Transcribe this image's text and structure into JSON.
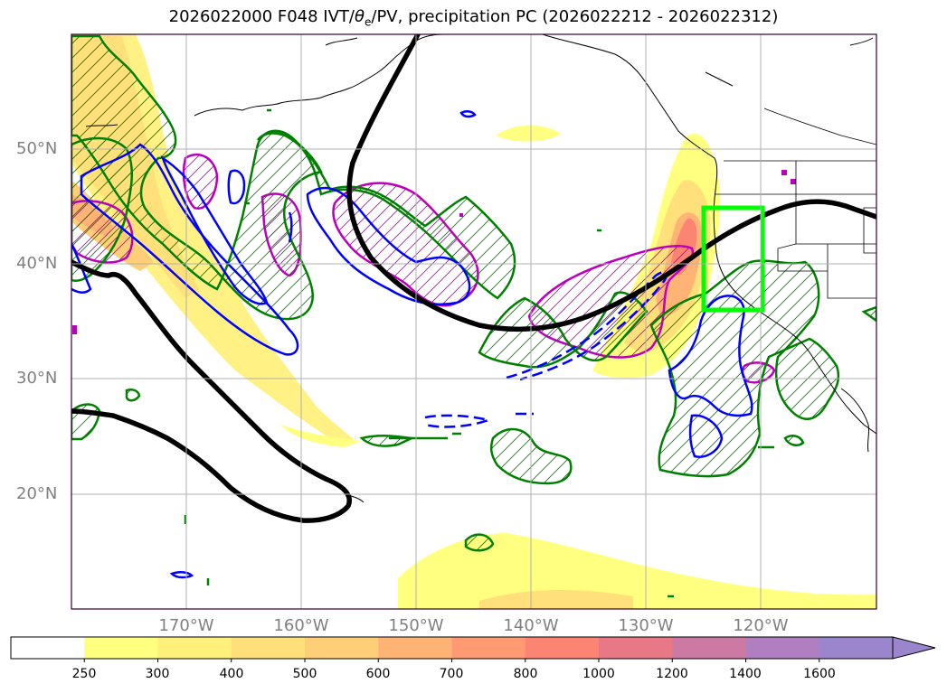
{
  "title_prefix": "2026022000 F048 IVT/",
  "title_theta": "θ",
  "title_theta_sub": "e",
  "title_suffix": "/PV, precipitation PC (2026022212 - 2026022312)",
  "lat_labels": [
    "50°N",
    "40°N",
    "30°N",
    "20°N"
  ],
  "lon_labels": [
    "170°W",
    "160°W",
    "150°W",
    "140°W",
    "130°W",
    "120°W"
  ],
  "colorbar": {
    "ticks": [
      "250",
      "300",
      "400",
      "500",
      "600",
      "700",
      "800",
      "1000",
      "1200",
      "1400",
      "1600"
    ],
    "colors": [
      "#ffffff",
      "#ffff80",
      "#fff07c",
      "#ffe07a",
      "#ffcf78",
      "#ffb475",
      "#ff9a73",
      "#fb8473",
      "#e87886",
      "#cc7aa4",
      "#b07fbf",
      "#9b85cc"
    ],
    "extend": "max"
  },
  "colors": {
    "ivt_contour": "#000000",
    "pv_positive": "#0000ff",
    "theta_e": "#008000",
    "precip_hatch": "#bb00bb",
    "highlight_box": "#00ff00",
    "coastline": "#000000",
    "grid": "#b0b0b0"
  }
}
